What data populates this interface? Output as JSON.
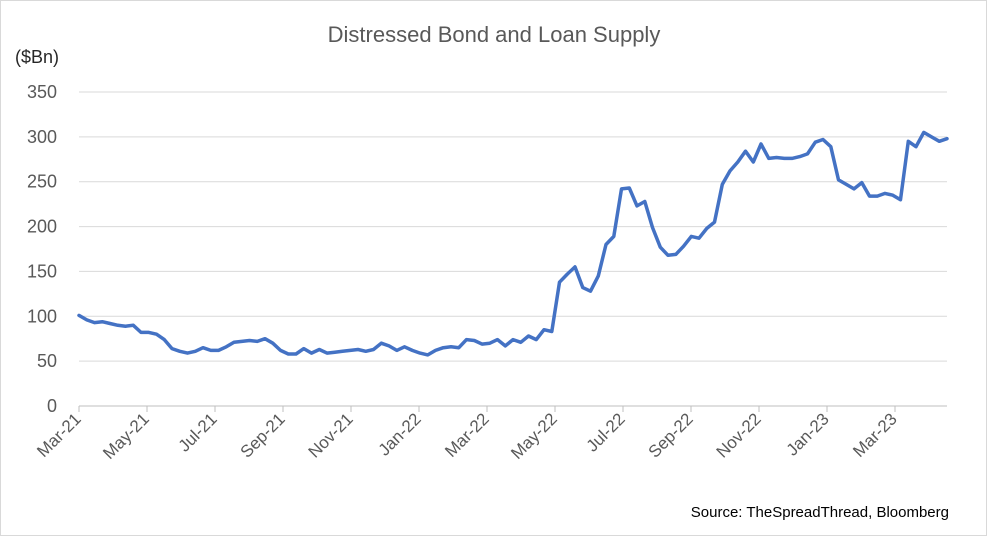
{
  "chart_data": {
    "type": "line",
    "title": "Distressed Bond and Loan Supply",
    "ylabel": "($Bn)",
    "ylim": [
      0,
      350
    ],
    "yticks": [
      0,
      50,
      100,
      150,
      200,
      250,
      300,
      350
    ],
    "xticks": [
      "Mar-21",
      "May-21",
      "Jul-21",
      "Sep-21",
      "Nov-21",
      "Jan-22",
      "Mar-22",
      "May-22",
      "Jul-22",
      "Sep-22",
      "Nov-22",
      "Jan-23",
      "Mar-23"
    ],
    "grid": true,
    "legend": "none",
    "line_color": "#4472c4",
    "series": [
      {
        "values": [
          101,
          96,
          93,
          94,
          92,
          90,
          89,
          90,
          82,
          82,
          80,
          74,
          64,
          61,
          59,
          61,
          65,
          62,
          62,
          66,
          71,
          72,
          73,
          72,
          75,
          70,
          62,
          58,
          58,
          64,
          59,
          63,
          59,
          60,
          61,
          62,
          63,
          61,
          63,
          70,
          67,
          62,
          66,
          62,
          59,
          57,
          62,
          65,
          66,
          65,
          74,
          73,
          69,
          70,
          74,
          67,
          74,
          71,
          78,
          74,
          85,
          83,
          138,
          147,
          155,
          132,
          128,
          145,
          180,
          189,
          242,
          243,
          223,
          228,
          199,
          177,
          168,
          169,
          178,
          189,
          187,
          198,
          205,
          247,
          262,
          272,
          284,
          272,
          292,
          276,
          277,
          276,
          276,
          278,
          281,
          294,
          297,
          289,
          252,
          247,
          242,
          249,
          234,
          234,
          237,
          235,
          230,
          295,
          289,
          305,
          300,
          295,
          298
        ]
      }
    ],
    "source": "Source: TheSpreadThread, Bloomberg"
  }
}
